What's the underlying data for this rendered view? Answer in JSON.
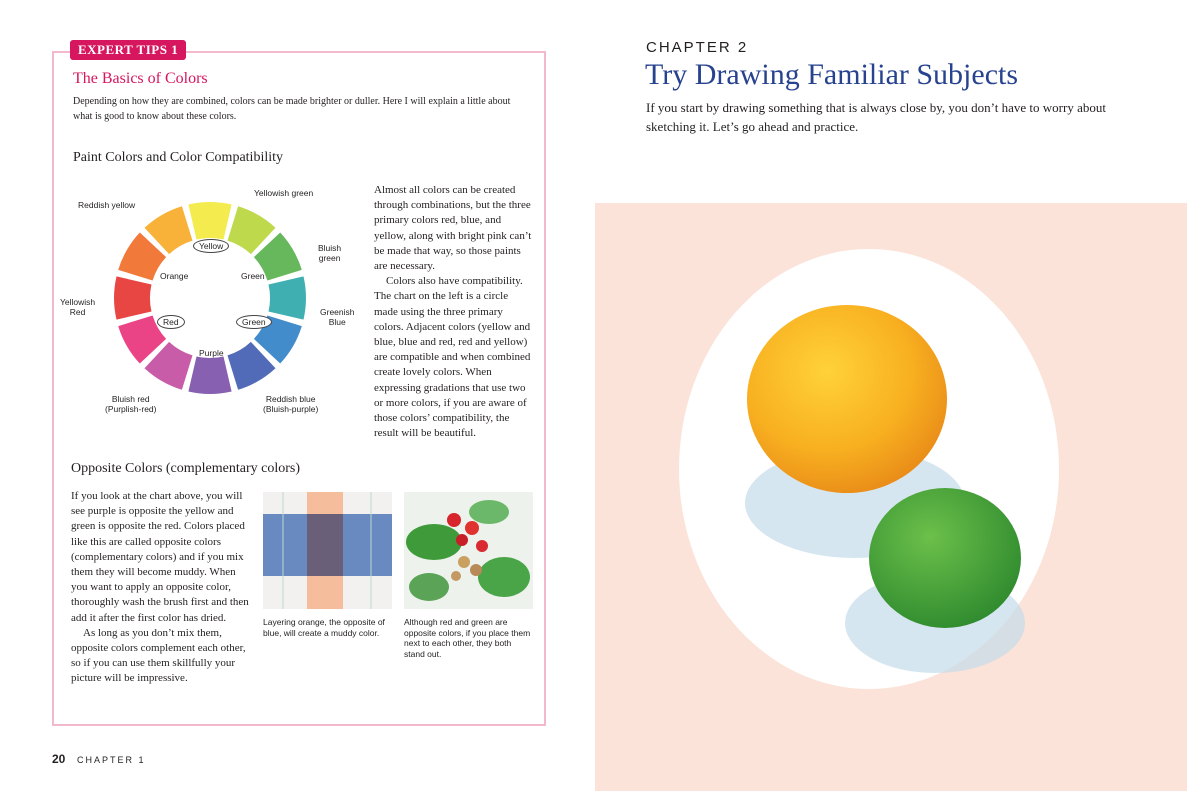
{
  "left_page": {
    "badge": "EXPERT TIPS 1",
    "title": "The Basics of Colors",
    "intro": "Depending on how they are combined, colors can be made brighter or duller. Here I will explain a little about what is good to know about these colors.",
    "section1": {
      "heading": "Paint Colors and Color Compatibility",
      "wheel_labels": [
        "Reddish yellow",
        "Yellowish green",
        "Bluish\ngreen",
        "Yellowish\nRed",
        "Greenish\nBlue",
        "Bluish red\n(Purplish-red)",
        "Reddish blue\n(Bluish-purple)",
        "Yellow",
        "Orange",
        "Green",
        "Red",
        "Green",
        "Purple"
      ],
      "paragraphs": [
        "Almost all colors can be created through combinations, but the three primary colors red, blue, and yellow, along with bright pink can’t be made that way, so those paints are necessary.",
        "Colors also have compatibility. The chart on the left is a circle made using the three primary colors. Adjacent colors (yellow and blue, blue and red, red and yellow) are compatible and when combined create lovely colors. When expressing gradations that use two or more colors, if you are aware of those colors’ compatibility, the result will be beautiful."
      ]
    },
    "section2": {
      "heading": "Opposite Colors (complementary colors)",
      "paragraphs": [
        "If you look at the chart above, you will see purple is opposite the yellow and green is opposite the red. Colors placed like this are called opposite colors (complementary colors) and if you mix them they will become muddy. When you want to apply an opposite color, thoroughly wash the brush first and then add it after the first color has dried.",
        "As long as you don’t mix them, opposite colors complement each other, so if you can use them skillfully your picture will be impressive."
      ],
      "captions": [
        "Layering orange, the opposite of blue, will create a muddy color.",
        "Although red and green are opposite colors, if you place them next to each other, they both stand out."
      ]
    },
    "footer": {
      "page_number": "20",
      "chapter": "CHAPTER 1"
    }
  },
  "right_page": {
    "chapter": "CHAPTER 2",
    "title": "Try Drawing Familiar Subjects",
    "intro": "If you start by drawing something that is always close by, you don’t have to worry about sketching it. Let’s go ahead and practice."
  }
}
